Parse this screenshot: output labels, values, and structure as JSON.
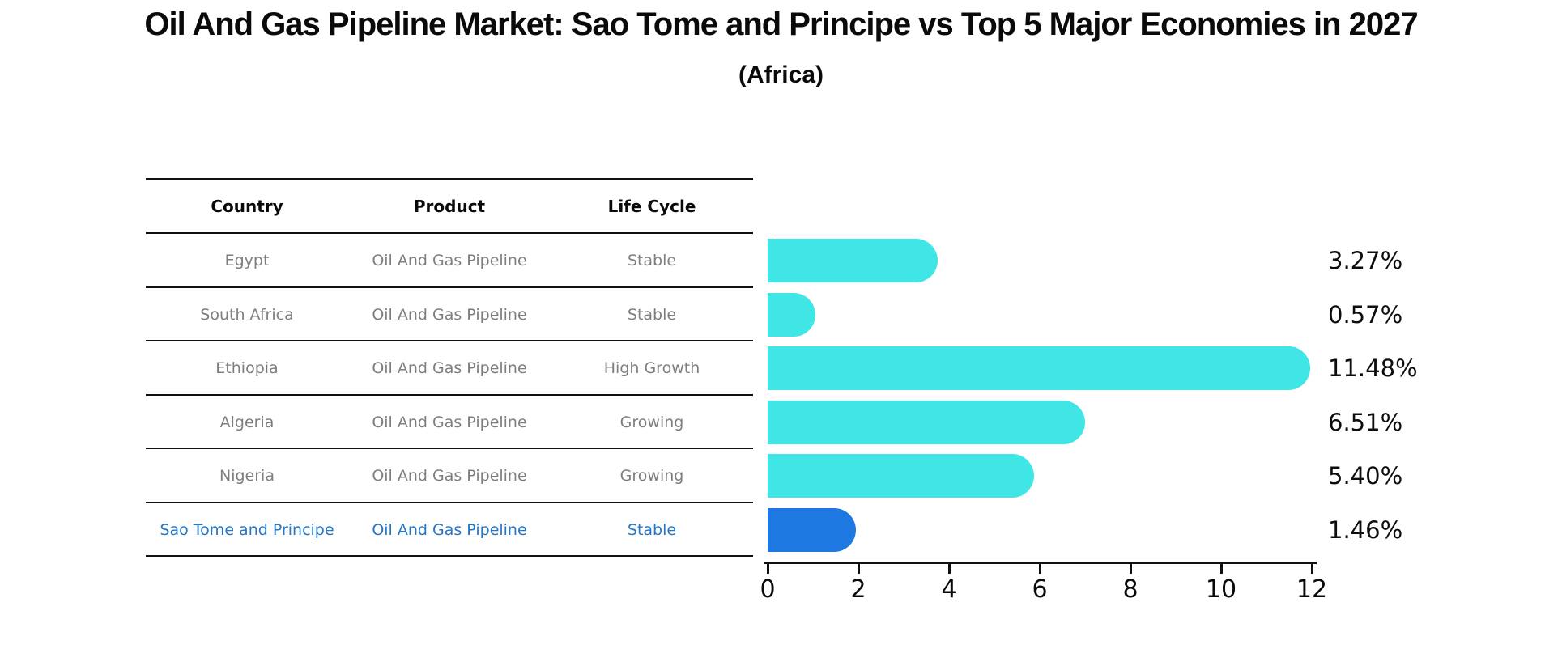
{
  "title": "Oil And Gas Pipeline Market: Sao Tome and Principe vs Top 5 Major Economies in 2027",
  "subtitle": "(Africa)",
  "table": {
    "headers": {
      "country": "Country",
      "product": "Product",
      "lifecycle": "Life Cycle"
    },
    "rows": [
      {
        "country": "Egypt",
        "product": "Oil And Gas Pipeline",
        "lifecycle": "Stable"
      },
      {
        "country": "South Africa",
        "product": "Oil And Gas Pipeline",
        "lifecycle": "Stable"
      },
      {
        "country": "Ethiopia",
        "product": "Oil And Gas Pipeline",
        "lifecycle": "High Growth"
      },
      {
        "country": "Algeria",
        "product": "Oil And Gas Pipeline",
        "lifecycle": "Growing"
      },
      {
        "country": "Nigeria",
        "product": "Oil And Gas Pipeline",
        "lifecycle": "Growing"
      },
      {
        "country": "Sao Tome and Principe",
        "product": "Oil And Gas Pipeline",
        "lifecycle": "Stable"
      }
    ]
  },
  "chart_data": {
    "type": "bar",
    "orientation": "horizontal",
    "categories": [
      "Egypt",
      "South Africa",
      "Ethiopia",
      "Algeria",
      "Nigeria",
      "Sao Tome and Principe"
    ],
    "values": [
      3.27,
      0.57,
      11.48,
      6.51,
      5.4,
      1.46
    ],
    "labels": [
      "3.27%",
      "0.57%",
      "11.48%",
      "6.51%",
      "5.40%",
      "1.46%"
    ],
    "xlim": [
      0,
      12
    ],
    "xticks": [
      "0",
      "2",
      "4",
      "6",
      "8",
      "10",
      "12"
    ],
    "xlabel": "",
    "ylabel": "",
    "grid": false,
    "legend": false,
    "bar_color": "#40E5E5",
    "highlight_color": "#1E78E1",
    "highlight_text_color": "#2277C8",
    "row_text_color": "#7E7E7E",
    "highlight_index": 5
  }
}
